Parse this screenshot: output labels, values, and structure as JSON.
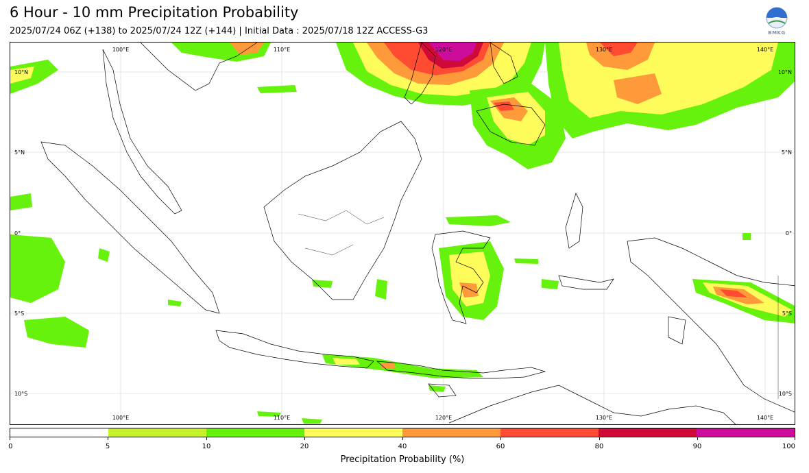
{
  "header": {
    "title": "6 Hour - 10 mm Precipitation Probability",
    "subtitle": "2025/07/24 06Z (+138) to 2025/07/24 12Z (+144) | Initial Data : 2025/07/18 12Z ACCESS-G3",
    "logo_text": "BMKG"
  },
  "map": {
    "lon_labels": [
      "100°E",
      "110°E",
      "120°E",
      "130°E",
      "140°E"
    ],
    "lat_labels": [
      "10°N",
      "5°N",
      "0°",
      "5°S",
      "10°S"
    ],
    "land_color": "#ffffff",
    "coast_color": "#000000"
  },
  "colorbar": {
    "title": "Precipitation Probability (%)",
    "ticks": [
      "0",
      "5",
      "10",
      "20",
      "40",
      "60",
      "80",
      "90",
      "100"
    ],
    "colors": [
      "#ffffff",
      "#c6f22c",
      "#66f20c",
      "#fdfc5b",
      "#fe9a3a",
      "#fe4b32",
      "#d00a38",
      "#cc0c9a"
    ]
  }
}
